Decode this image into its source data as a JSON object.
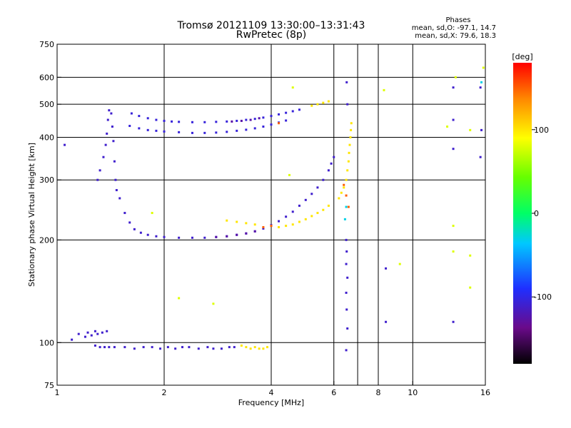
{
  "chart_data": {
    "type": "scatter",
    "title": "Tromsø 20121109 13:30:00–13:31:43",
    "subtitle": "RwPretec (8p)",
    "xlabel": "Frequency [MHz]",
    "ylabel": "Stationary phase Virtual Height [km]",
    "x_scale": "log",
    "y_scale": "log",
    "xlim": [
      1,
      16
    ],
    "ylim": [
      75,
      750
    ],
    "x_ticks": [
      1,
      2,
      4,
      6,
      8,
      10,
      16
    ],
    "y_ticks": [
      75,
      100,
      200,
      300,
      400,
      500,
      600,
      750
    ],
    "x_gridlines": [
      2,
      4,
      6,
      7,
      8,
      10
    ],
    "y_gridlines": [
      100,
      200,
      300,
      400,
      500,
      600
    ],
    "phases_box": {
      "heading": "Phases",
      "line_o": "mean, sd,O:  -97.1, 14.7",
      "line_x": "mean, sd,X:  79.6, 18.3"
    },
    "colorbar": {
      "label": "[deg]",
      "range": [
        -180,
        180
      ],
      "ticks": [
        100,
        0,
        -100
      ]
    },
    "series": [
      {
        "phase": -110,
        "points": [
          [
            1.28,
            98
          ],
          [
            1.32,
            97
          ],
          [
            1.36,
            97
          ],
          [
            1.4,
            97
          ],
          [
            1.45,
            97
          ],
          [
            1.55,
            97
          ],
          [
            1.65,
            96
          ],
          [
            1.75,
            97
          ],
          [
            1.85,
            97
          ],
          [
            1.95,
            96
          ],
          [
            2.05,
            97
          ],
          [
            2.15,
            96
          ],
          [
            2.25,
            97
          ],
          [
            2.35,
            97
          ],
          [
            2.5,
            96
          ],
          [
            2.65,
            97
          ],
          [
            2.75,
            96
          ],
          [
            2.9,
            96
          ],
          [
            3.05,
            97
          ],
          [
            3.15,
            97
          ],
          [
            1.1,
            102
          ],
          [
            1.15,
            106
          ],
          [
            1.2,
            104
          ],
          [
            1.22,
            107
          ],
          [
            1.25,
            105
          ],
          [
            1.28,
            108
          ],
          [
            1.3,
            106
          ],
          [
            1.34,
            107
          ],
          [
            1.38,
            108
          ]
        ]
      },
      {
        "phase": -110,
        "points": [
          [
            1.3,
            300
          ],
          [
            1.32,
            320
          ],
          [
            1.35,
            350
          ],
          [
            1.37,
            380
          ],
          [
            1.38,
            410
          ],
          [
            1.39,
            450
          ],
          [
            1.4,
            480
          ],
          [
            1.42,
            470
          ],
          [
            1.43,
            430
          ],
          [
            1.44,
            390
          ],
          [
            1.45,
            340
          ],
          [
            1.46,
            300
          ],
          [
            1.47,
            280
          ],
          [
            1.5,
            265
          ],
          [
            1.55,
            240
          ],
          [
            1.6,
            225
          ],
          [
            1.65,
            215
          ],
          [
            1.72,
            210
          ],
          [
            1.8,
            207
          ],
          [
            1.9,
            205
          ],
          [
            2.0,
            204
          ],
          [
            2.2,
            203
          ],
          [
            2.4,
            203
          ],
          [
            2.6,
            203
          ],
          [
            2.8,
            204
          ],
          [
            3.0,
            205
          ],
          [
            3.2,
            207
          ],
          [
            3.4,
            209
          ],
          [
            3.6,
            212
          ],
          [
            3.8,
            216
          ],
          [
            4.0,
            221
          ],
          [
            4.2,
            227
          ],
          [
            4.4,
            234
          ],
          [
            4.6,
            242
          ],
          [
            4.8,
            252
          ],
          [
            5.0,
            262
          ],
          [
            5.2,
            273
          ],
          [
            5.4,
            285
          ],
          [
            5.6,
            300
          ],
          [
            5.8,
            320
          ],
          [
            5.9,
            335
          ],
          [
            6.0,
            350
          ]
        ]
      },
      {
        "phase": -105,
        "points": [
          [
            1.62,
            470
          ],
          [
            1.7,
            462
          ],
          [
            1.8,
            455
          ],
          [
            1.9,
            450
          ],
          [
            2.0,
            447
          ],
          [
            2.1,
            445
          ],
          [
            2.2,
            444
          ],
          [
            2.4,
            443
          ],
          [
            2.6,
            443
          ],
          [
            2.8,
            444
          ],
          [
            3.0,
            445
          ],
          [
            3.2,
            447
          ],
          [
            3.4,
            450
          ],
          [
            3.6,
            453
          ],
          [
            3.8,
            457
          ],
          [
            4.0,
            462
          ],
          [
            4.2,
            467
          ],
          [
            4.4,
            472
          ],
          [
            4.6,
            477
          ],
          [
            4.8,
            482
          ],
          [
            1.6,
            432
          ],
          [
            1.7,
            425
          ],
          [
            1.8,
            420
          ],
          [
            1.9,
            418
          ],
          [
            2.0,
            416
          ],
          [
            2.2,
            414
          ],
          [
            2.4,
            412
          ],
          [
            2.6,
            412
          ],
          [
            2.8,
            413
          ],
          [
            3.0,
            415
          ],
          [
            3.2,
            418
          ],
          [
            3.4,
            421
          ],
          [
            3.6,
            425
          ],
          [
            3.8,
            430
          ],
          [
            4.0,
            436
          ],
          [
            4.2,
            442
          ],
          [
            4.4,
            448
          ]
        ]
      },
      {
        "phase": -125,
        "points": [
          [
            3.1,
            445
          ],
          [
            3.3,
            447
          ],
          [
            3.5,
            450
          ],
          [
            3.7,
            455
          ],
          [
            2.8,
            204
          ],
          [
            3.0,
            205
          ],
          [
            3.2,
            207
          ],
          [
            3.4,
            209
          ],
          [
            3.6,
            212
          ]
        ]
      },
      {
        "phase": 100,
        "points": [
          [
            3.0,
            228
          ],
          [
            3.2,
            226
          ],
          [
            3.4,
            224
          ],
          [
            3.6,
            222
          ],
          [
            4.2,
            218
          ],
          [
            4.4,
            220
          ],
          [
            4.6,
            222
          ],
          [
            4.8,
            226
          ],
          [
            5.0,
            230
          ],
          [
            5.2,
            235
          ],
          [
            5.4,
            240
          ],
          [
            5.6,
            245
          ],
          [
            5.8,
            252
          ],
          [
            5.2,
            495
          ],
          [
            5.4,
            500
          ],
          [
            5.6,
            505
          ],
          [
            5.8,
            510
          ],
          [
            6.2,
            265
          ],
          [
            6.3,
            275
          ],
          [
            6.4,
            285
          ],
          [
            6.5,
            300
          ],
          [
            6.55,
            320
          ],
          [
            6.6,
            340
          ],
          [
            6.62,
            360
          ],
          [
            6.65,
            380
          ],
          [
            6.68,
            400
          ],
          [
            6.7,
            420
          ],
          [
            6.72,
            440
          ],
          [
            3.3,
            98
          ],
          [
            3.4,
            97
          ],
          [
            3.5,
            96
          ],
          [
            3.6,
            97
          ],
          [
            3.7,
            96
          ],
          [
            3.8,
            96
          ],
          [
            3.9,
            97
          ]
        ]
      },
      {
        "phase": 150,
        "points": [
          [
            3.8,
            218
          ],
          [
            4.0,
            220
          ],
          [
            4.2,
            440
          ],
          [
            6.4,
            290
          ],
          [
            6.5,
            270
          ],
          [
            6.6,
            250
          ]
        ]
      },
      {
        "phase": -110,
        "points": [
          [
            6.5,
            200
          ],
          [
            6.52,
            185
          ],
          [
            6.5,
            170
          ],
          [
            6.55,
            155
          ],
          [
            6.5,
            140
          ],
          [
            6.52,
            125
          ],
          [
            6.55,
            110
          ],
          [
            6.5,
            95
          ],
          [
            6.52,
            580
          ],
          [
            13.0,
            560
          ],
          [
            13.0,
            450
          ],
          [
            13.0,
            370
          ],
          [
            13.0,
            115
          ],
          [
            15.5,
            560
          ],
          [
            15.6,
            420
          ],
          [
            15.5,
            350
          ],
          [
            8.4,
            115
          ],
          [
            8.4,
            165
          ],
          [
            1.05,
            380
          ],
          [
            6.55,
            500
          ]
        ]
      },
      {
        "phase": 80,
        "points": [
          [
            13.2,
            600
          ],
          [
            12.5,
            430
          ],
          [
            14.5,
            420
          ],
          [
            13.0,
            220
          ],
          [
            13.0,
            185
          ],
          [
            14.5,
            180
          ],
          [
            14.5,
            145
          ],
          [
            2.2,
            135
          ],
          [
            2.75,
            130
          ],
          [
            1.85,
            240
          ],
          [
            4.6,
            560
          ],
          [
            4.5,
            310
          ],
          [
            9.2,
            170
          ],
          [
            8.3,
            550
          ],
          [
            15.8,
            640
          ]
        ]
      },
      {
        "phase": -30,
        "points": [
          [
            6.5,
            250
          ],
          [
            6.45,
            230
          ],
          [
            15.6,
            580
          ]
        ]
      }
    ]
  }
}
